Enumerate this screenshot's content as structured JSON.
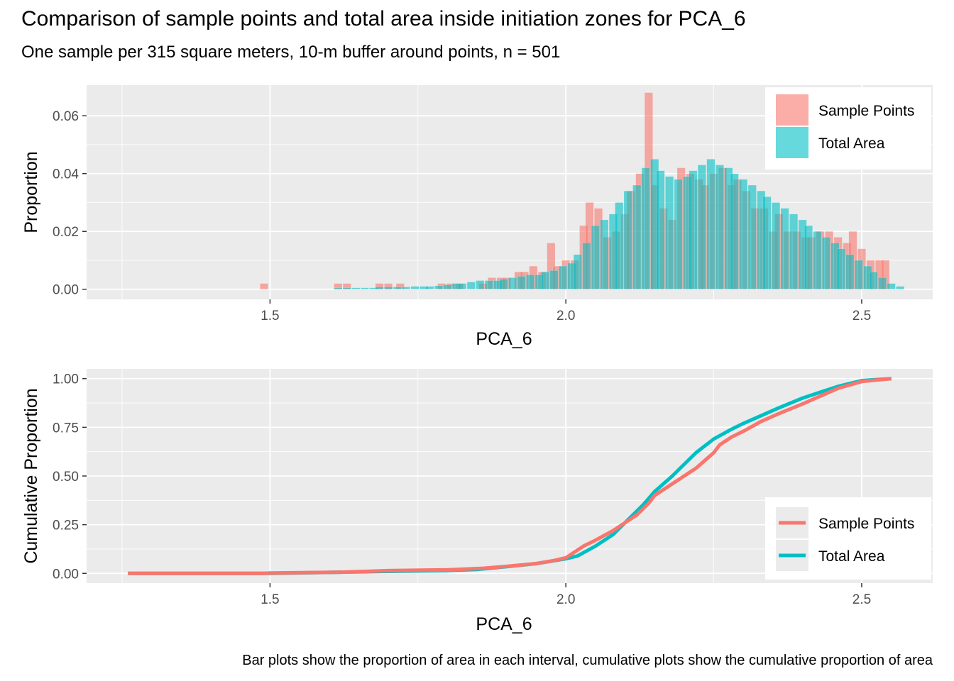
{
  "title": "Comparison of sample points and total area inside initiation zones for PCA_6",
  "subtitle": "One sample per 315 square meters, 10-m buffer around points, n = 501",
  "caption": "Bar plots show the proportion of area in each interval, cumulative plots show the cumulative proportion of area",
  "colors": {
    "sample": "#F8766D",
    "area": "#00BFC4",
    "panel": "#EBEBEB",
    "grid": "#FFFFFF"
  },
  "chart_data": [
    {
      "type": "bar",
      "xlabel": "PCA_6",
      "ylabel": "Proportion",
      "xlim": [
        1.19,
        2.62
      ],
      "ylim": [
        -0.0035,
        0.0706
      ],
      "xticks": [
        1.5,
        2.0,
        2.5
      ],
      "xtick_labels": [
        "1.5",
        "2.0",
        "2.5"
      ],
      "yticks": [
        0,
        0.02,
        0.04,
        0.06
      ],
      "ytick_labels": [
        "0.00",
        "0.02",
        "0.04",
        "0.06"
      ],
      "bin_width": 0.01375,
      "legend": {
        "position": "top-right",
        "labels": [
          "Sample Points",
          "Total Area"
        ]
      },
      "series": [
        {
          "name": "Sample Points",
          "bins": [
            [
              1.49,
              0.002
            ],
            [
              1.615,
              0.002
            ],
            [
              1.63,
              0.002
            ],
            [
              1.685,
              0.002
            ],
            [
              1.7,
              0.002
            ],
            [
              1.72,
              0.002
            ],
            [
              1.79,
              0.002
            ],
            [
              1.805,
              0.002
            ],
            [
              1.82,
              0.002
            ],
            [
              1.86,
              0.002
            ],
            [
              1.875,
              0.004
            ],
            [
              1.89,
              0.004
            ],
            [
              1.9,
              0.004
            ],
            [
              1.92,
              0.006
            ],
            [
              1.93,
              0.006
            ],
            [
              1.945,
              0.008
            ],
            [
              1.96,
              0.006
            ],
            [
              1.975,
              0.016
            ],
            [
              1.985,
              0.008
            ],
            [
              2.0,
              0.01
            ],
            [
              2.015,
              0.01
            ],
            [
              2.03,
              0.022
            ],
            [
              2.04,
              0.03
            ],
            [
              2.055,
              0.028
            ],
            [
              2.07,
              0.018
            ],
            [
              2.085,
              0.02
            ],
            [
              2.1,
              0.026
            ],
            [
              2.11,
              0.034
            ],
            [
              2.125,
              0.04
            ],
            [
              2.14,
              0.068
            ],
            [
              2.15,
              0.036
            ],
            [
              2.165,
              0.028
            ],
            [
              2.18,
              0.024
            ],
            [
              2.195,
              0.042
            ],
            [
              2.21,
              0.04
            ],
            [
              2.225,
              0.038
            ],
            [
              2.235,
              0.036
            ],
            [
              2.25,
              0.04
            ],
            [
              2.265,
              0.042
            ],
            [
              2.28,
              0.036
            ],
            [
              2.29,
              0.038
            ],
            [
              2.305,
              0.034
            ],
            [
              2.32,
              0.028
            ],
            [
              2.335,
              0.028
            ],
            [
              2.35,
              0.02
            ],
            [
              2.36,
              0.026
            ],
            [
              2.375,
              0.02
            ],
            [
              2.39,
              0.02
            ],
            [
              2.405,
              0.018
            ],
            [
              2.415,
              0.018
            ],
            [
              2.43,
              0.02
            ],
            [
              2.445,
              0.02
            ],
            [
              2.46,
              0.018
            ],
            [
              2.475,
              0.016
            ],
            [
              2.485,
              0.02
            ],
            [
              2.5,
              0.014
            ],
            [
              2.515,
              0.01
            ],
            [
              2.53,
              0.01
            ],
            [
              2.54,
              0.01
            ]
          ]
        },
        {
          "name": "Total Area",
          "bins": [
            [
              1.615,
              0.0005
            ],
            [
              1.63,
              0.0005
            ],
            [
              1.645,
              0.0005
            ],
            [
              1.66,
              0.0005
            ],
            [
              1.675,
              0.0005
            ],
            [
              1.685,
              0.0008
            ],
            [
              1.7,
              0.0008
            ],
            [
              1.715,
              0.0008
            ],
            [
              1.73,
              0.0008
            ],
            [
              1.745,
              0.001
            ],
            [
              1.76,
              0.001
            ],
            [
              1.77,
              0.001
            ],
            [
              1.785,
              0.0012
            ],
            [
              1.8,
              0.0015
            ],
            [
              1.815,
              0.002
            ],
            [
              1.825,
              0.002
            ],
            [
              1.84,
              0.0025
            ],
            [
              1.855,
              0.003
            ],
            [
              1.87,
              0.003
            ],
            [
              1.885,
              0.003
            ],
            [
              1.895,
              0.0035
            ],
            [
              1.91,
              0.004
            ],
            [
              1.925,
              0.0045
            ],
            [
              1.94,
              0.005
            ],
            [
              1.955,
              0.005
            ],
            [
              1.965,
              0.006
            ],
            [
              1.98,
              0.0065
            ],
            [
              1.995,
              0.008
            ],
            [
              2.01,
              0.009
            ],
            [
              2.02,
              0.012
            ],
            [
              2.035,
              0.016
            ],
            [
              2.05,
              0.022
            ],
            [
              2.065,
              0.024
            ],
            [
              2.08,
              0.026
            ],
            [
              2.09,
              0.03
            ],
            [
              2.105,
              0.034
            ],
            [
              2.12,
              0.036
            ],
            [
              2.135,
              0.042
            ],
            [
              2.15,
              0.045
            ],
            [
              2.16,
              0.041
            ],
            [
              2.175,
              0.039
            ],
            [
              2.19,
              0.038
            ],
            [
              2.205,
              0.039
            ],
            [
              2.215,
              0.041
            ],
            [
              2.23,
              0.043
            ],
            [
              2.245,
              0.045
            ],
            [
              2.26,
              0.043
            ],
            [
              2.275,
              0.042
            ],
            [
              2.285,
              0.04
            ],
            [
              2.3,
              0.038
            ],
            [
              2.315,
              0.036
            ],
            [
              2.33,
              0.034
            ],
            [
              2.34,
              0.032
            ],
            [
              2.355,
              0.03
            ],
            [
              2.37,
              0.028
            ],
            [
              2.385,
              0.026
            ],
            [
              2.4,
              0.024
            ],
            [
              2.41,
              0.022
            ],
            [
              2.425,
              0.02
            ],
            [
              2.44,
              0.018
            ],
            [
              2.455,
              0.016
            ],
            [
              2.465,
              0.014
            ],
            [
              2.48,
              0.012
            ],
            [
              2.495,
              0.01
            ],
            [
              2.51,
              0.008
            ],
            [
              2.52,
              0.006
            ],
            [
              2.535,
              0.004
            ],
            [
              2.55,
              0.002
            ],
            [
              2.565,
              0.001
            ]
          ]
        }
      ]
    },
    {
      "type": "line",
      "xlabel": "PCA_6",
      "ylabel": "Cumulative Proportion",
      "xlim": [
        1.19,
        2.62
      ],
      "ylim": [
        -0.05,
        1.05
      ],
      "xticks": [
        1.5,
        2.0,
        2.5
      ],
      "xtick_labels": [
        "1.5",
        "2.0",
        "2.5"
      ],
      "yticks": [
        0,
        0.25,
        0.5,
        0.75,
        1.0
      ],
      "ytick_labels": [
        "0.00",
        "0.25",
        "0.50",
        "0.75",
        "1.00"
      ],
      "legend": {
        "position": "bottom-right",
        "labels": [
          "Sample Points",
          "Total Area"
        ]
      },
      "series": [
        {
          "name": "Total Area",
          "x": [
            1.26,
            1.4,
            1.5,
            1.6,
            1.7,
            1.8,
            1.85,
            1.9,
            1.95,
            2.0,
            2.02,
            2.05,
            2.08,
            2.1,
            2.13,
            2.15,
            2.18,
            2.2,
            2.22,
            2.25,
            2.28,
            2.3,
            2.33,
            2.36,
            2.4,
            2.43,
            2.46,
            2.5,
            2.55
          ],
          "y": [
            0.0,
            0.0,
            0.0,
            0.005,
            0.01,
            0.015,
            0.02,
            0.035,
            0.05,
            0.075,
            0.09,
            0.14,
            0.2,
            0.26,
            0.35,
            0.42,
            0.5,
            0.56,
            0.62,
            0.69,
            0.74,
            0.77,
            0.81,
            0.85,
            0.9,
            0.93,
            0.96,
            0.99,
            1.0
          ]
        },
        {
          "name": "Sample Points",
          "x": [
            1.26,
            1.4,
            1.49,
            1.5,
            1.62,
            1.7,
            1.8,
            1.86,
            1.9,
            1.95,
            1.98,
            2.0,
            2.03,
            2.05,
            2.08,
            2.1,
            2.12,
            2.14,
            2.15,
            2.18,
            2.2,
            2.22,
            2.25,
            2.26,
            2.28,
            2.3,
            2.33,
            2.36,
            2.4,
            2.43,
            2.46,
            2.5,
            2.55
          ],
          "y": [
            0.0,
            0.0,
            0.0,
            0.002,
            0.006,
            0.014,
            0.018,
            0.026,
            0.036,
            0.05,
            0.066,
            0.08,
            0.14,
            0.17,
            0.22,
            0.26,
            0.3,
            0.36,
            0.4,
            0.46,
            0.5,
            0.54,
            0.62,
            0.66,
            0.7,
            0.73,
            0.78,
            0.82,
            0.87,
            0.91,
            0.95,
            0.985,
            1.0
          ]
        }
      ]
    }
  ]
}
